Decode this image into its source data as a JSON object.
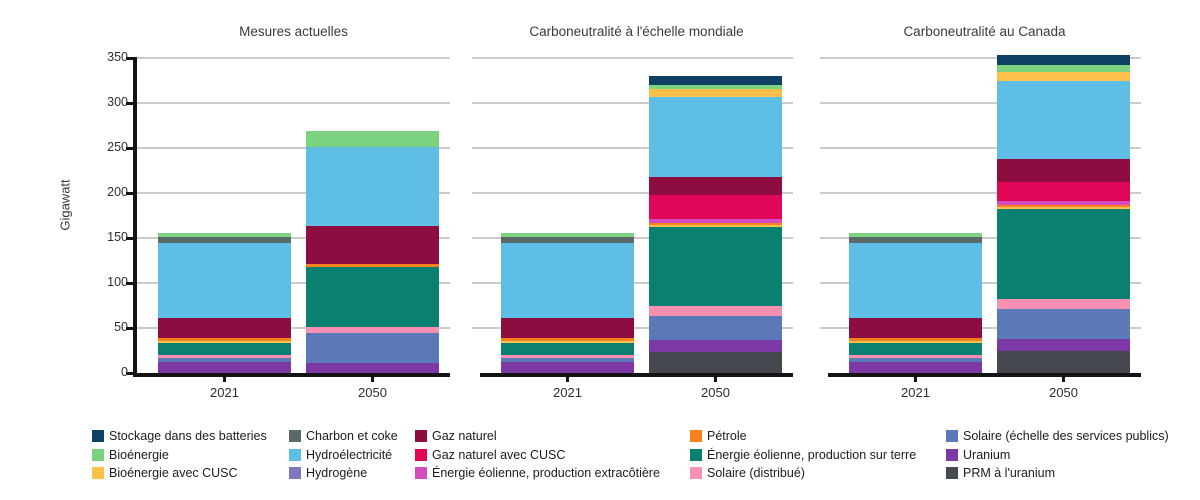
{
  "chart_data": {
    "type": "bar",
    "stacked": true,
    "title": "",
    "ylabel": "Gigawatt",
    "ylim": [
      0,
      350
    ],
    "y_ticks": [
      0,
      50,
      100,
      150,
      200,
      250,
      300,
      350
    ],
    "categories": [
      "2021",
      "2050"
    ],
    "grid": true,
    "legend_position": "bottom",
    "panels": [
      {
        "title": "Mesures actuelles",
        "bars": [
          {
            "x": "2021",
            "total": 155.5,
            "segments_top_down": [
              [
                "Bioénergie",
                4
              ],
              [
                "Charbon et coke",
                7
              ],
              [
                "Hydroélectricité",
                83
              ],
              [
                "Gaz naturel",
                23
              ],
              [
                "Pétrole",
                2.5
              ],
              [
                "Bioénergie avec CUSC",
                2.5
              ],
              [
                "Énergie éolienne, production sur terre",
                13
              ],
              [
                "Solaire (distribué)",
                3.5
              ],
              [
                "Solaire (échelle des services publics)",
                5
              ],
              [
                "Uranium",
                12
              ]
            ]
          },
          {
            "x": "2050",
            "total": 268.5,
            "segments_top_down": [
              [
                "Bioénergie",
                17
              ],
              [
                "Hydroélectricité",
                88
              ],
              [
                "Gaz naturel",
                42
              ],
              [
                "Pétrole",
                3.5
              ],
              [
                "Énergie éolienne, production sur terre",
                67
              ],
              [
                "Solaire (distribué)",
                6
              ],
              [
                "Solaire (échelle des services publics)",
                34
              ],
              [
                "Uranium",
                11
              ]
            ]
          }
        ]
      },
      {
        "title": "Carboneutralité à l'échelle mondiale",
        "bars": [
          {
            "x": "2021",
            "total": 155.5,
            "segments_top_down": [
              [
                "Bioénergie",
                4
              ],
              [
                "Charbon et coke",
                7
              ],
              [
                "Hydroélectricité",
                83
              ],
              [
                "Gaz naturel",
                23
              ],
              [
                "Pétrole",
                2.5
              ],
              [
                "Bioénergie avec CUSC",
                2.5
              ],
              [
                "Énergie éolienne, production sur terre",
                13
              ],
              [
                "Solaire (distribué)",
                3.5
              ],
              [
                "Solaire (échelle des services publics)",
                5
              ],
              [
                "Uranium",
                12
              ]
            ]
          },
          {
            "x": "2050",
            "total": 330,
            "segments_top_down": [
              [
                "Stockage dans des batteries",
                10
              ],
              [
                "Bioénergie",
                4.5
              ],
              [
                "Bioénergie avec CUSC",
                9
              ],
              [
                "Hydroélectricité",
                89
              ],
              [
                "Gaz naturel",
                20
              ],
              [
                "Gaz naturel avec CUSC",
                26
              ],
              [
                "Énergie éolienne, production extracôtière",
                4.5
              ],
              [
                "Pétrole",
                2.5
              ],
              [
                "Bioénergie avec CUSC",
                2.5
              ],
              [
                "Énergie éolienne, production sur terre",
                88
              ],
              [
                "Solaire (distribué)",
                10.5
              ],
              [
                "Solaire (échelle des services publics)",
                27
              ],
              [
                "Uranium",
                13
              ],
              [
                "PRM à l'uranium",
                23.5
              ]
            ]
          }
        ]
      },
      {
        "title": "Carboneutralité au Canada",
        "bars": [
          {
            "x": "2021",
            "total": 155.5,
            "segments_top_down": [
              [
                "Bioénergie",
                4
              ],
              [
                "Charbon et coke",
                7
              ],
              [
                "Hydroélectricité",
                83
              ],
              [
                "Gaz naturel",
                23
              ],
              [
                "Pétrole",
                2.5
              ],
              [
                "Bioénergie avec CUSC",
                2.5
              ],
              [
                "Énergie éolienne, production sur terre",
                13
              ],
              [
                "Solaire (distribué)",
                3.5
              ],
              [
                "Solaire (échelle des services publics)",
                5
              ],
              [
                "Uranium",
                12
              ]
            ]
          },
          {
            "x": "2050",
            "total": 353,
            "segments_top_down": [
              [
                "Stockage dans des batteries",
                11
              ],
              [
                "Bioénergie",
                8
              ],
              [
                "Bioénergie avec CUSC",
                9
              ],
              [
                "Hydroélectricité",
                87
              ],
              [
                "Gaz naturel",
                26
              ],
              [
                "Gaz naturel avec CUSC",
                20.5
              ],
              [
                "Énergie éolienne, production extracôtière",
                4.5
              ],
              [
                "Pétrole",
                2.5
              ],
              [
                "Bioénergie avec CUSC",
                2.5
              ],
              [
                "Énergie éolienne, production sur terre",
                100
              ],
              [
                "Solaire (distribué)",
                11
              ],
              [
                "Solaire (échelle des services publics)",
                33.5
              ],
              [
                "Uranium",
                13.5
              ],
              [
                "PRM à l'uranium",
                24
              ]
            ]
          }
        ]
      }
    ],
    "colors": {
      "Stockage dans des batteries": "#0e4066",
      "Bioénergie": "#7cd37f",
      "Bioénergie avec CUSC": "#fdc04a",
      "Charbon et coke": "#5a6a6b",
      "Hydroélectricité": "#5ebee6",
      "Hydrogène": "#7e79be",
      "Gaz naturel": "#8d0d41",
      "Gaz naturel avec CUSC": "#e00758",
      "Énergie éolienne, production extracôtière": "#d54cc0",
      "Pétrole": "#f5821f",
      "Énergie éolienne, production sur terre": "#0a8170",
      "Solaire (distribué)": "#f98fb1",
      "Solaire (échelle des services publics)": "#5b79b7",
      "Uranium": "#7c39a6",
      "PRM à l'uranium": "#45494f"
    },
    "legend_columns": [
      [
        "Stockage dans des batteries",
        "Bioénergie",
        "Bioénergie avec CUSC"
      ],
      [
        "Charbon et coke",
        "Hydroélectricité",
        "Hydrogène"
      ],
      [
        "Gaz naturel",
        "Gaz naturel avec CUSC",
        "Énergie éolienne, production extracôtière"
      ],
      [
        "Pétrole",
        "Énergie éolienne, production sur terre",
        "Solaire (distribué)"
      ],
      [
        "Solaire (échelle des services publics)",
        "Uranium",
        "PRM à l'uranium"
      ]
    ]
  }
}
